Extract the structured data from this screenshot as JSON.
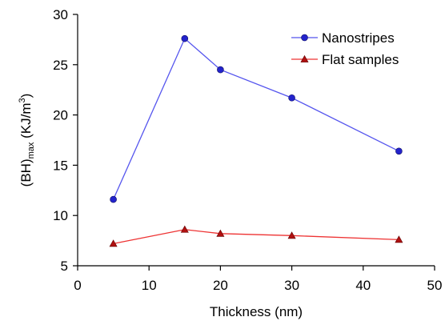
{
  "chart_data": {
    "type": "line",
    "xlabel": "Thickness (nm)",
    "ylabel": {
      "base": "(BH)",
      "sub": "max",
      "units_pre": " (KJ/m",
      "units_sup": "3",
      "units_post": ")"
    },
    "xlim": [
      0,
      50
    ],
    "ylim": [
      5,
      30
    ],
    "xticks": [
      0,
      10,
      20,
      30,
      40,
      50
    ],
    "yticks": [
      5,
      10,
      15,
      20,
      25,
      30
    ],
    "grid": false,
    "legend_position": "top-right",
    "series": [
      {
        "name": "Nanostripes",
        "marker": "circle",
        "color": "#2323cc",
        "line_color": "#5555ee",
        "x": [
          5,
          15,
          20,
          30,
          45
        ],
        "y": [
          11.6,
          27.6,
          24.5,
          21.7,
          16.4
        ]
      },
      {
        "name": "Flat samples",
        "marker": "triangle",
        "color": "#b01010",
        "line_color": "#ee3333",
        "x": [
          5,
          15,
          20,
          30,
          45
        ],
        "y": [
          7.2,
          8.6,
          8.2,
          8.0,
          7.6
        ]
      }
    ]
  }
}
